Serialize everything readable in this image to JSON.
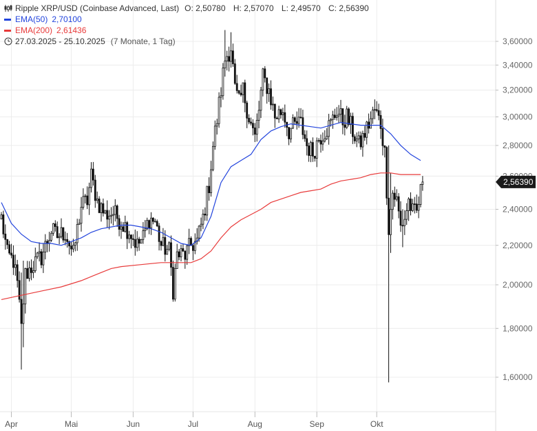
{
  "legend": {
    "title": "Ripple XRP/USD (Coinbase Advanced, Last)",
    "o": "O: 2,50780",
    "h": "H: 2,57070",
    "l": "L: 2,49570",
    "c": "C: 2,56390",
    "ema50_label": "EMA(50)",
    "ema50_value": "2,70100",
    "ema200_label": "EMA(200)",
    "ema200_value": "2,61436",
    "range": "27.03.2025 - 25.10.2025",
    "range_extra": "(7 Monate, 1 Tag)"
  },
  "colors": {
    "candle": "#111111",
    "ema50": "#2244dd",
    "ema200": "#e83a3a",
    "grid": "#ececec",
    "last_badge": "#1a1a1a"
  },
  "chart_data": {
    "type": "candlestick",
    "y_scale": "log",
    "ylim": [
      1.5,
      3.85
    ],
    "y_ticks": [
      "3,60000",
      "3,40000",
      "3,20000",
      "3,00000",
      "2,80000",
      "2,60000",
      "2,40000",
      "2,20000",
      "2,00000",
      "1,80000",
      "1,60000"
    ],
    "y_tick_values": [
      3.6,
      3.4,
      3.2,
      3.0,
      2.8,
      2.6,
      2.4,
      2.2,
      2.0,
      1.8,
      1.6
    ],
    "x_ticks": [
      "Apr",
      "Mai",
      "Jun",
      "Jul",
      "Aug",
      "Sep",
      "Okt"
    ],
    "x_tick_days": [
      5,
      35,
      66,
      96,
      127,
      158,
      188
    ],
    "last_value_label": "2,56390",
    "last_value": 2.5639,
    "close_anchors": [
      [
        0,
        2.35
      ],
      [
        3,
        2.15
      ],
      [
        6,
        2.12
      ],
      [
        8,
        2.0
      ],
      [
        10,
        1.8
      ],
      [
        12,
        2.05
      ],
      [
        16,
        2.1
      ],
      [
        20,
        2.14
      ],
      [
        25,
        2.28
      ],
      [
        28,
        2.25
      ],
      [
        32,
        2.27
      ],
      [
        36,
        2.15
      ],
      [
        40,
        2.42
      ],
      [
        43,
        2.45
      ],
      [
        45,
        2.6
      ],
      [
        48,
        2.45
      ],
      [
        52,
        2.37
      ],
      [
        56,
        2.38
      ],
      [
        60,
        2.33
      ],
      [
        64,
        2.28
      ],
      [
        68,
        2.2
      ],
      [
        71,
        2.24
      ],
      [
        74,
        2.35
      ],
      [
        77,
        2.33
      ],
      [
        80,
        2.2
      ],
      [
        84,
        2.17
      ],
      [
        86,
        1.98
      ],
      [
        88,
        2.15
      ],
      [
        92,
        2.15
      ],
      [
        95,
        2.2
      ],
      [
        98,
        2.22
      ],
      [
        101,
        2.35
      ],
      [
        104,
        2.55
      ],
      [
        106,
        2.8
      ],
      [
        108,
        2.98
      ],
      [
        110,
        3.2
      ],
      [
        112,
        3.45
      ],
      [
        115,
        3.55
      ],
      [
        117,
        3.2
      ],
      [
        119,
        3.1
      ],
      [
        121,
        3.2
      ],
      [
        124,
        3.0
      ],
      [
        127,
        2.85
      ],
      [
        129,
        3.05
      ],
      [
        131,
        3.3
      ],
      [
        134,
        3.2
      ],
      [
        137,
        3.0
      ],
      [
        141,
        3.05
      ],
      [
        144,
        2.9
      ],
      [
        148,
        2.95
      ],
      [
        150,
        2.95
      ],
      [
        153,
        2.8
      ],
      [
        156,
        2.75
      ],
      [
        159,
        2.85
      ],
      [
        162,
        2.9
      ],
      [
        165,
        2.95
      ],
      [
        168,
        3.05
      ],
      [
        171,
        2.97
      ],
      [
        173,
        3.0
      ],
      [
        176,
        2.9
      ],
      [
        179,
        2.8
      ],
      [
        181,
        2.85
      ],
      [
        184,
        2.95
      ],
      [
        187,
        3.05
      ],
      [
        190,
        2.95
      ],
      [
        192,
        2.75
      ],
      [
        194,
        2.3
      ],
      [
        196,
        2.5
      ],
      [
        198,
        2.45
      ],
      [
        200,
        2.3
      ],
      [
        202,
        2.35
      ],
      [
        204,
        2.45
      ],
      [
        206,
        2.38
      ],
      [
        208,
        2.38
      ],
      [
        211,
        2.56
      ]
    ],
    "ema50_points": [
      [
        0,
        2.44
      ],
      [
        5,
        2.32
      ],
      [
        10,
        2.26
      ],
      [
        15,
        2.22
      ],
      [
        20,
        2.21
      ],
      [
        25,
        2.21
      ],
      [
        30,
        2.2
      ],
      [
        35,
        2.22
      ],
      [
        40,
        2.24
      ],
      [
        45,
        2.27
      ],
      [
        50,
        2.29
      ],
      [
        55,
        2.3
      ],
      [
        60,
        2.31
      ],
      [
        65,
        2.31
      ],
      [
        70,
        2.3
      ],
      [
        75,
        2.29
      ],
      [
        80,
        2.27
      ],
      [
        85,
        2.24
      ],
      [
        90,
        2.21
      ],
      [
        95,
        2.2
      ],
      [
        100,
        2.24
      ],
      [
        105,
        2.36
      ],
      [
        110,
        2.56
      ],
      [
        115,
        2.66
      ],
      [
        120,
        2.7
      ],
      [
        125,
        2.74
      ],
      [
        130,
        2.84
      ],
      [
        135,
        2.9
      ],
      [
        140,
        2.93
      ],
      [
        145,
        2.95
      ],
      [
        150,
        2.94
      ],
      [
        155,
        2.93
      ],
      [
        160,
        2.92
      ],
      [
        165,
        2.94
      ],
      [
        170,
        2.96
      ],
      [
        175,
        2.95
      ],
      [
        180,
        2.94
      ],
      [
        185,
        2.94
      ],
      [
        190,
        2.94
      ],
      [
        195,
        2.88
      ],
      [
        200,
        2.8
      ],
      [
        205,
        2.74
      ],
      [
        210,
        2.7
      ]
    ],
    "ema200_points": [
      [
        0,
        1.93
      ],
      [
        10,
        1.95
      ],
      [
        20,
        1.97
      ],
      [
        30,
        1.99
      ],
      [
        40,
        2.02
      ],
      [
        45,
        2.04
      ],
      [
        50,
        2.06
      ],
      [
        55,
        2.08
      ],
      [
        60,
        2.09
      ],
      [
        70,
        2.1
      ],
      [
        80,
        2.11
      ],
      [
        90,
        2.11
      ],
      [
        95,
        2.11
      ],
      [
        100,
        2.13
      ],
      [
        105,
        2.17
      ],
      [
        110,
        2.24
      ],
      [
        115,
        2.3
      ],
      [
        120,
        2.34
      ],
      [
        125,
        2.37
      ],
      [
        130,
        2.4
      ],
      [
        135,
        2.44
      ],
      [
        140,
        2.46
      ],
      [
        145,
        2.48
      ],
      [
        150,
        2.5
      ],
      [
        155,
        2.51
      ],
      [
        160,
        2.52
      ],
      [
        165,
        2.55
      ],
      [
        170,
        2.57
      ],
      [
        175,
        2.58
      ],
      [
        180,
        2.59
      ],
      [
        185,
        2.61
      ],
      [
        190,
        2.62
      ],
      [
        195,
        2.62
      ],
      [
        200,
        2.61
      ],
      [
        205,
        2.61
      ],
      [
        210,
        2.61
      ]
    ],
    "notable_wicks": [
      [
        10,
        1.63,
        2.06
      ],
      [
        11,
        1.72,
        2.12
      ],
      [
        194,
        1.58,
        2.8
      ],
      [
        195,
        2.16,
        2.62
      ],
      [
        112,
        3.6,
        3.7
      ],
      [
        115,
        3.4,
        3.68
      ],
      [
        201,
        2.19,
        2.4
      ],
      [
        86,
        1.92,
        2.1
      ]
    ]
  }
}
